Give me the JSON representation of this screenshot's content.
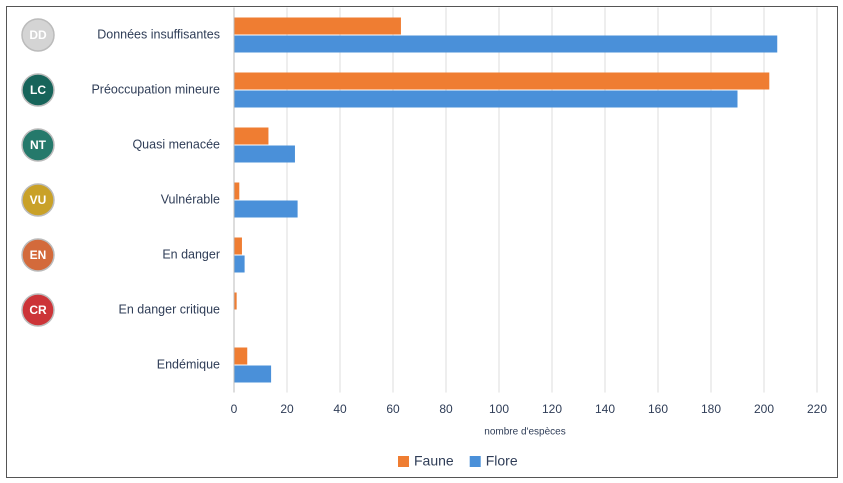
{
  "chart_data": {
    "type": "bar",
    "orientation": "horizontal",
    "categories": [
      "Données insuffisantes",
      "Préoccupation mineure",
      "Quasi menacée",
      "Vulnérable",
      "En danger",
      "En danger critique",
      "Endémique"
    ],
    "badges": [
      "DD",
      "LC",
      "NT",
      "VU",
      "EN",
      "CR"
    ],
    "badge_colors": [
      "#d4d4d4",
      "#17645a",
      "#25796b",
      "#c9a128",
      "#d36a3b",
      "#cc3438"
    ],
    "series": [
      {
        "name": "Faune",
        "color": "#ef7d32",
        "values": [
          63,
          202,
          13,
          2,
          3,
          1,
          5
        ]
      },
      {
        "name": "Flore",
        "color": "#4a90d9",
        "values": [
          205,
          190,
          23,
          24,
          4,
          0,
          14
        ]
      }
    ],
    "xlabel": "nombre d'espèces",
    "xlim": [
      0,
      220
    ],
    "xticks": [
      0,
      20,
      40,
      60,
      80,
      100,
      120,
      140,
      160,
      180,
      200,
      220
    ],
    "grid": true,
    "legend": "bottom"
  }
}
